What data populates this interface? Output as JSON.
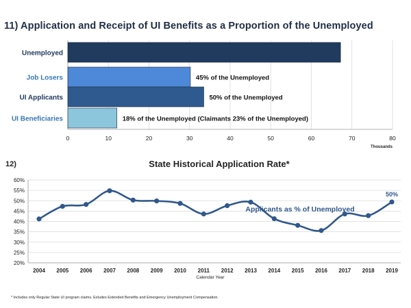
{
  "page_title": "11) Application and Receipt of UI Benefits as a Proportion of the Unemployed",
  "footnote": "* Includes only Regular State UI program claims. Exludes Extended Benefits and Emergency Unemployment Compensation.",
  "colors": {
    "unemployed": "#213b5e",
    "job_losers": "#4e88d8",
    "ui_applicants": "#2f5a8f",
    "ui_beneficiaries": "#8cc6dc",
    "line": "#30588c",
    "label_blue": "#3a78b6"
  },
  "chart_data": [
    {
      "type": "bar",
      "orientation": "horizontal",
      "categories": [
        "Unemployed",
        "Job Losers",
        "UI Applicants",
        "UI Beneficiaries"
      ],
      "values": [
        67.2,
        30.2,
        33.5,
        12.1
      ],
      "annotations": [
        "",
        "45% of the Unemployed",
        "50% of the Unemployed",
        "18% of the Unemployed  (Claimants 23% of the Unemployed)"
      ],
      "xlim": [
        0,
        80
      ],
      "x_ticks": [
        "0",
        "10",
        "20",
        "30",
        "40",
        "50",
        "60",
        "70",
        "80"
      ],
      "unit_label": "Thousands",
      "grid": true
    },
    {
      "type": "line",
      "number": "12)",
      "title": "State Historical Application Rate*",
      "x": [
        "2004",
        "2005",
        "2006",
        "2007",
        "2008",
        "2009",
        "2010",
        "2011",
        "2012",
        "2013",
        "2014",
        "2015",
        "2016",
        "2017",
        "2018",
        "2019"
      ],
      "series": [
        {
          "name": "Applicants as % of Unemployed",
          "values": [
            41.2,
            47.3,
            48.2,
            54.8,
            50.3,
            49.9,
            48.7,
            43.6,
            47.6,
            49.3,
            41.3,
            38.1,
            35.6,
            43.6,
            42.8,
            49.4
          ]
        }
      ],
      "last_label": "50%",
      "xlabel": "Calendar Year",
      "ylim": [
        20,
        60
      ],
      "y_ticks": [
        "20%",
        "25%",
        "30%",
        "35%",
        "40%",
        "45%",
        "50%",
        "55%",
        "60%"
      ],
      "grid": true
    }
  ]
}
